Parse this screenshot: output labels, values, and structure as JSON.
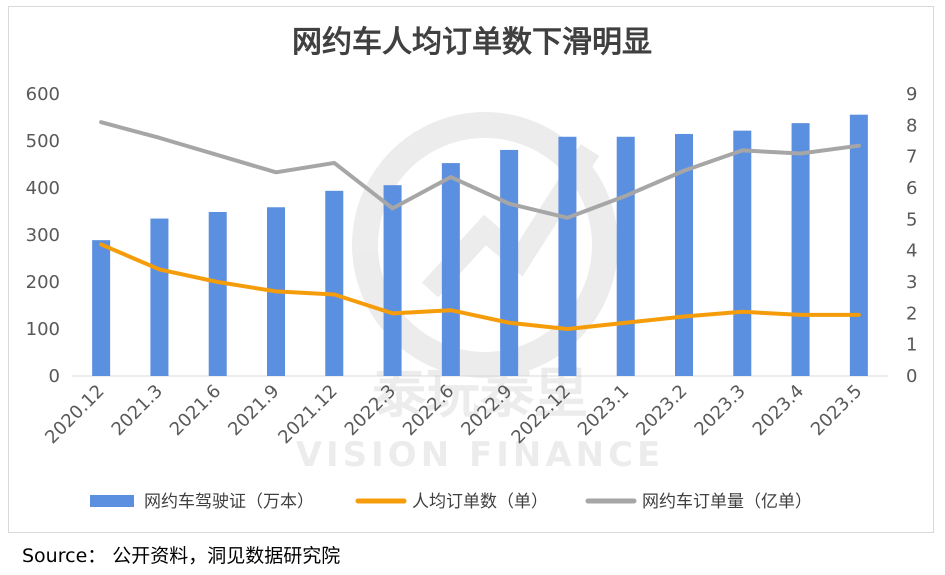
{
  "chart_data": {
    "type": "bar",
    "title": "网约车人均订单数下滑明显",
    "categories": [
      "2020.12",
      "2021.3",
      "2021.6",
      "2021.9",
      "2021.12",
      "2022.3",
      "2022.6",
      "2022.9",
      "2022.12",
      "2023.1",
      "2023.2",
      "2023.3",
      "2023.4",
      "2023.5"
    ],
    "y_left": {
      "ticks": [
        "0",
        "100",
        "200",
        "300",
        "400",
        "500",
        "600"
      ],
      "ylim": [
        0,
        600
      ]
    },
    "y_right": {
      "ticks": [
        "0",
        "1",
        "2",
        "3",
        "4",
        "5",
        "6",
        "7",
        "8",
        "9"
      ],
      "ylim": [
        0,
        9
      ]
    },
    "series": [
      {
        "name": "网约车驾驶证（万本）",
        "type": "bar",
        "axis": "left",
        "color": "#5b8fdf",
        "values": [
          289,
          335,
          349,
          359,
          394,
          406,
          453,
          481,
          509,
          509,
          515,
          522,
          538,
          556
        ]
      },
      {
        "name": "人均订单数（单）",
        "type": "line",
        "axis": "right",
        "color": "#f59c0b",
        "values": [
          4.2,
          3.4,
          3.0,
          2.7,
          2.6,
          2.0,
          2.1,
          1.7,
          1.5,
          1.7,
          1.9,
          2.05,
          1.95,
          1.95
        ]
      },
      {
        "name": "网约车订单量（亿单）",
        "type": "line",
        "axis": "right",
        "color": "#a6a6a6",
        "values": [
          8.1,
          7.6,
          7.05,
          6.5,
          6.8,
          5.35,
          6.35,
          5.5,
          5.05,
          5.75,
          6.55,
          7.2,
          7.1,
          7.35
        ]
      }
    ],
    "legend_position": "bottom",
    "grid": false
  },
  "watermark": {
    "cn": "泰玩泰里",
    "en": "VISION FINANCE"
  },
  "source_text": "Source：  公开资料，洞见数据研究院"
}
